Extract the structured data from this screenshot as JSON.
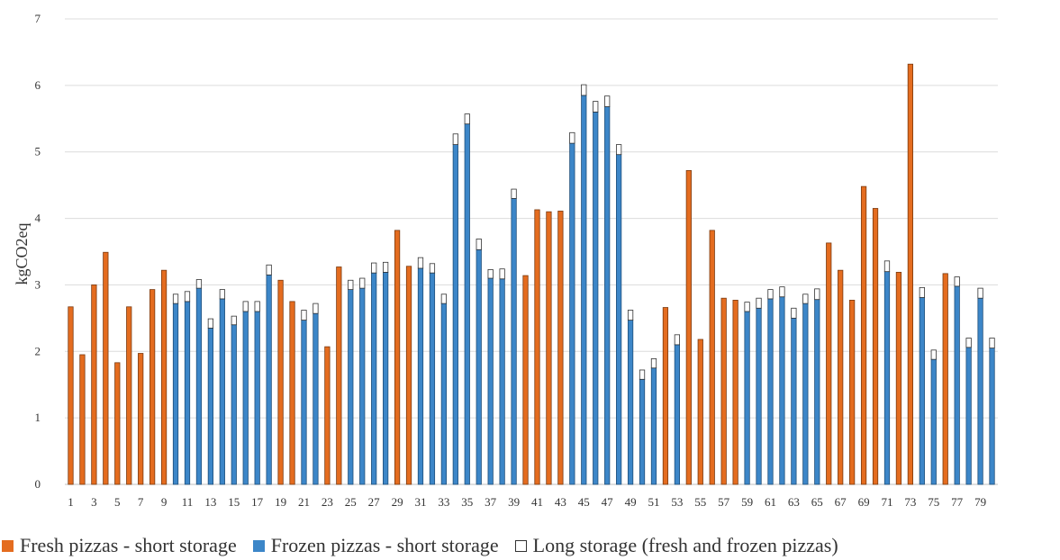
{
  "chart_data": {
    "type": "bar",
    "stacked": true,
    "ylabel": "kgCO2eq",
    "xlabel": "",
    "ylim": [
      0,
      7
    ],
    "yticks": [
      0,
      1,
      2,
      3,
      4,
      5,
      6,
      7
    ],
    "grid": true,
    "legend_position": "bottom",
    "x_tick_labels": [
      "1",
      "3",
      "5",
      "7",
      "9",
      "11",
      "13",
      "15",
      "17",
      "19",
      "21",
      "23",
      "25",
      "27",
      "29",
      "31",
      "33",
      "35",
      "37",
      "39",
      "41",
      "43",
      "45",
      "47",
      "49",
      "51",
      "53",
      "55",
      "57",
      "59",
      "61",
      "63",
      "65",
      "67",
      "69",
      "71",
      "73",
      "75",
      "77",
      "79"
    ],
    "categories": [
      1,
      2,
      3,
      4,
      5,
      6,
      7,
      8,
      9,
      10,
      11,
      12,
      13,
      14,
      15,
      16,
      17,
      18,
      19,
      20,
      21,
      22,
      23,
      24,
      25,
      26,
      27,
      28,
      29,
      30,
      31,
      32,
      33,
      34,
      35,
      36,
      37,
      38,
      39,
      40,
      41,
      42,
      43,
      44,
      45,
      46,
      47,
      48,
      49,
      50,
      51,
      52,
      53,
      54,
      55,
      56,
      57,
      58,
      59,
      60,
      61,
      62,
      63,
      64,
      65,
      66,
      67,
      68,
      69,
      70,
      71,
      72,
      73,
      74,
      75,
      76,
      77,
      78,
      79,
      80
    ],
    "pizza_type": [
      "fresh",
      "fresh",
      "fresh",
      "fresh",
      "fresh",
      "fresh",
      "fresh",
      "fresh",
      "fresh",
      "frozen",
      "frozen",
      "frozen",
      "frozen",
      "frozen",
      "frozen",
      "frozen",
      "frozen",
      "frozen",
      "fresh",
      "fresh",
      "frozen",
      "frozen",
      "fresh",
      "fresh",
      "frozen",
      "frozen",
      "frozen",
      "frozen",
      "fresh",
      "fresh",
      "frozen",
      "frozen",
      "frozen",
      "frozen",
      "frozen",
      "frozen",
      "frozen",
      "frozen",
      "frozen",
      "fresh",
      "fresh",
      "fresh",
      "fresh",
      "frozen",
      "frozen",
      "frozen",
      "frozen",
      "frozen",
      "frozen",
      "frozen",
      "frozen",
      "fresh",
      "frozen",
      "fresh",
      "fresh",
      "fresh",
      "fresh",
      "fresh",
      "frozen",
      "frozen",
      "frozen",
      "frozen",
      "frozen",
      "frozen",
      "frozen",
      "fresh",
      "fresh",
      "fresh",
      "fresh",
      "fresh",
      "frozen",
      "fresh",
      "fresh",
      "frozen",
      "frozen",
      "fresh",
      "frozen",
      "frozen",
      "frozen",
      "frozen"
    ],
    "series": [
      {
        "name": "Fresh pizzas - short storage",
        "color": "#e46c1f",
        "values": [
          2.67,
          1.95,
          3.0,
          3.49,
          1.83,
          2.67,
          1.97,
          2.93,
          3.22,
          0,
          0,
          0,
          0,
          0,
          0,
          0,
          0,
          0,
          3.07,
          2.75,
          0,
          0,
          2.07,
          3.27,
          0,
          0,
          0,
          0,
          3.82,
          3.28,
          0,
          0,
          0,
          0,
          0,
          0,
          0,
          0,
          0,
          3.14,
          4.13,
          4.1,
          4.11,
          0,
          0,
          0,
          0,
          0,
          0,
          0,
          0,
          2.66,
          0,
          4.72,
          2.18,
          3.82,
          2.8,
          2.77,
          0,
          0,
          0,
          0,
          0,
          0,
          0,
          3.63,
          3.22,
          2.77,
          4.48,
          4.15,
          0,
          3.19,
          6.32,
          0,
          0,
          3.17,
          0,
          0,
          0,
          0
        ]
      },
      {
        "name": "Frozen pizzas - short storage",
        "color": "#3c86c8",
        "values": [
          0,
          0,
          0,
          0,
          0,
          0,
          0,
          0,
          0,
          2.72,
          2.75,
          2.95,
          2.35,
          2.79,
          2.4,
          2.6,
          2.6,
          3.15,
          0,
          0,
          2.47,
          2.57,
          0,
          0,
          2.93,
          2.95,
          3.18,
          3.19,
          0,
          0,
          3.25,
          3.18,
          2.72,
          5.11,
          5.42,
          3.53,
          3.1,
          3.09,
          4.3,
          0,
          0,
          0,
          0,
          5.13,
          5.85,
          5.6,
          5.68,
          4.96,
          2.47,
          1.58,
          1.75,
          0,
          2.1,
          0,
          0,
          0,
          0,
          0,
          2.6,
          2.65,
          2.79,
          2.82,
          2.5,
          2.72,
          2.78,
          0,
          0,
          0,
          0,
          0,
          3.2,
          0,
          0,
          2.81,
          1.88,
          0,
          2.98,
          2.06,
          2.8,
          2.05
        ]
      },
      {
        "name": "Long storage (fresh and frozen pizzas)",
        "color": "#ffffff",
        "values": [
          0,
          0,
          0,
          0,
          0,
          0,
          0,
          0,
          0,
          0.14,
          0.15,
          0.13,
          0.14,
          0.14,
          0.13,
          0.15,
          0.15,
          0.15,
          0,
          0,
          0.15,
          0.15,
          0,
          0,
          0.14,
          0.15,
          0.15,
          0.15,
          0,
          0,
          0.16,
          0.14,
          0.14,
          0.16,
          0.15,
          0.16,
          0.13,
          0.15,
          0.14,
          0,
          0,
          0,
          0,
          0.16,
          0.16,
          0.16,
          0.16,
          0.15,
          0.15,
          0.14,
          0.14,
          0,
          0.15,
          0,
          0,
          0,
          0,
          0,
          0.14,
          0.15,
          0.14,
          0.15,
          0.15,
          0.14,
          0.16,
          0,
          0,
          0,
          0,
          0,
          0.16,
          0,
          0,
          0.15,
          0.14,
          0,
          0.14,
          0.14,
          0.15,
          0.15
        ]
      }
    ]
  },
  "legend": [
    {
      "label": "Fresh pizzas - short storage",
      "color": "#e46c1f"
    },
    {
      "label": "Frozen pizzas - short storage",
      "color": "#3c86c8"
    },
    {
      "label": "Long storage (fresh and frozen pizzas)",
      "color": "#ffffff"
    }
  ]
}
